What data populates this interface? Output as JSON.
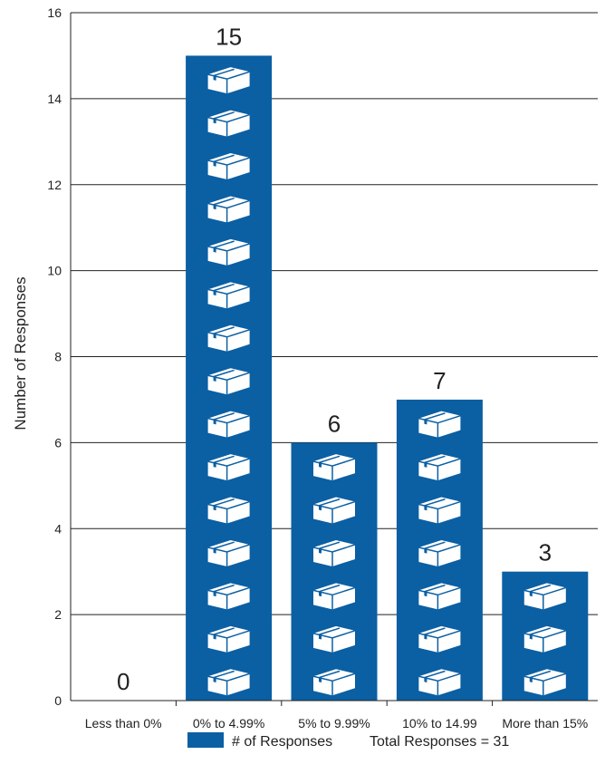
{
  "chart_data": {
    "type": "bar",
    "categories": [
      "Less than 0%",
      "0% to 4.99%",
      "5% to 9.99%",
      "10% to 14.99",
      "More than 15%"
    ],
    "series": [
      {
        "name": "# of Responses",
        "values": [
          0,
          15,
          6,
          7,
          3
        ]
      }
    ],
    "ylabel": "Number of Responses",
    "ylim": [
      0,
      16
    ],
    "yticks": [
      0,
      2,
      4,
      6,
      8,
      10,
      12,
      14,
      16
    ],
    "grid": true,
    "bar_color": "#0b5fa3",
    "bar_icon": "box-icon",
    "data_labels": [
      "0",
      "15",
      "6",
      "7",
      "3"
    ],
    "legend_position": "bottom",
    "annotation": "Total Responses = 31"
  }
}
